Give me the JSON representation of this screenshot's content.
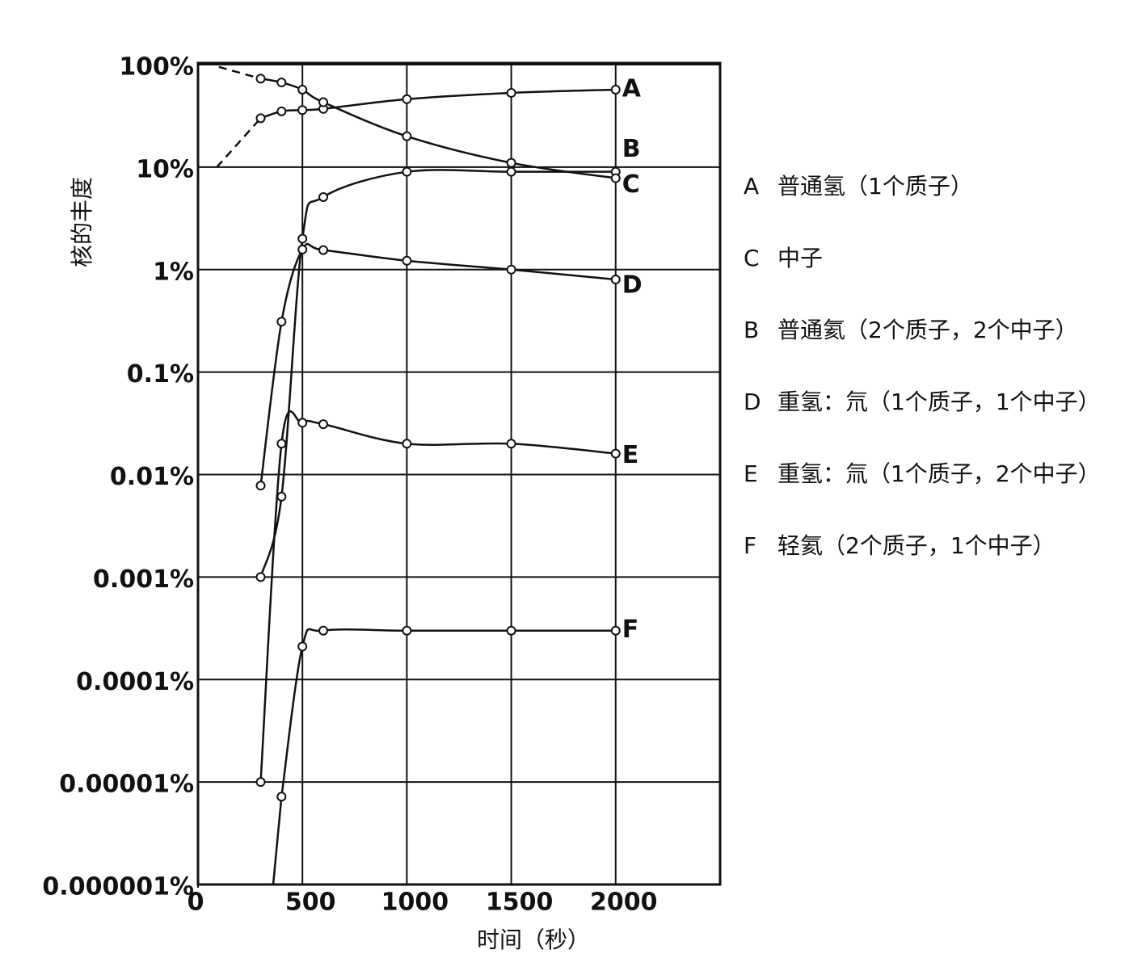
{
  "chart_data": {
    "type": "line",
    "x_label": "时间（秒）",
    "y_label": "核的丰度",
    "xlim": [
      0,
      2500
    ],
    "xticks": [
      0,
      500,
      1000,
      1500,
      2000
    ],
    "ylim": [
      1e-06,
      100
    ],
    "y_scale": "log",
    "yticks": [
      {
        "value": 100,
        "label": "100%"
      },
      {
        "value": 10,
        "label": "10%"
      },
      {
        "value": 1,
        "label": "1%"
      },
      {
        "value": 0.1,
        "label": "0.1%"
      },
      {
        "value": 0.01,
        "label": "0.01%"
      },
      {
        "value": 0.001,
        "label": "0.001%"
      },
      {
        "value": 0.0001,
        "label": "0.0001%"
      },
      {
        "value": 1e-05,
        "label": "0.00001%"
      },
      {
        "value": 1e-06,
        "label": "0.000001%"
      }
    ],
    "grid": true,
    "series": [
      {
        "name": "A",
        "color": "#111111",
        "x": [
          90,
          300,
          400,
          500,
          600,
          1000,
          1500,
          2000
        ],
        "values": [
          10,
          30,
          35,
          36,
          37,
          46,
          53,
          57
        ],
        "lead_in_points": 1,
        "lead_in_dashed": true
      },
      {
        "name": "B",
        "color": "#111111",
        "x": [
          300,
          400,
          500,
          600,
          1000,
          1500,
          2000
        ],
        "values": [
          0.001,
          0.0061,
          2.0,
          5.1,
          9,
          9,
          9
        ],
        "lead_in_points": 0,
        "lead_in_dashed": false
      },
      {
        "name": "C",
        "color": "#111111",
        "x": [
          100,
          300,
          400,
          500,
          600,
          1000,
          1500,
          2000
        ],
        "values": [
          95,
          73,
          67,
          57,
          43,
          20,
          11,
          7.8
        ],
        "lead_in_points": 1,
        "lead_in_dashed": true
      },
      {
        "name": "D",
        "color": "#111111",
        "x": [
          300,
          400,
          500,
          600,
          1000,
          1500,
          2000
        ],
        "values": [
          0.0078,
          0.31,
          1.57,
          1.55,
          1.22,
          1.0,
          0.8
        ],
        "lead_in_points": 0,
        "lead_in_dashed": false
      },
      {
        "name": "E",
        "color": "#111111",
        "x": [
          300,
          400,
          500,
          600,
          1000,
          1500,
          2000
        ],
        "values": [
          1e-05,
          0.02,
          0.032,
          0.031,
          0.02,
          0.02,
          0.016
        ],
        "lead_in_points": 0,
        "lead_in_dashed": false
      },
      {
        "name": "F",
        "color": "#111111",
        "x": [
          360,
          400,
          500,
          600,
          1000,
          1500,
          2000
        ],
        "values": [
          1e-06,
          7.2e-06,
          0.00021,
          0.0003,
          0.0003,
          0.0003,
          0.0003
        ],
        "lead_in_points": 1,
        "lead_in_dashed": false
      }
    ],
    "legend": [
      {
        "key": "A",
        "label": "普通氢（1个质子）"
      },
      {
        "key": "C",
        "label": "中子"
      },
      {
        "key": "B",
        "label": "普通氦（2个质子，2个中子）"
      },
      {
        "key": "D",
        "label": "重氢：氘（1个质子，1个中子）"
      },
      {
        "key": "E",
        "label": "重氢：氚（1个质子，2个中子）"
      },
      {
        "key": "F",
        "label": "轻氦（2个质子，1个中子）"
      }
    ]
  }
}
